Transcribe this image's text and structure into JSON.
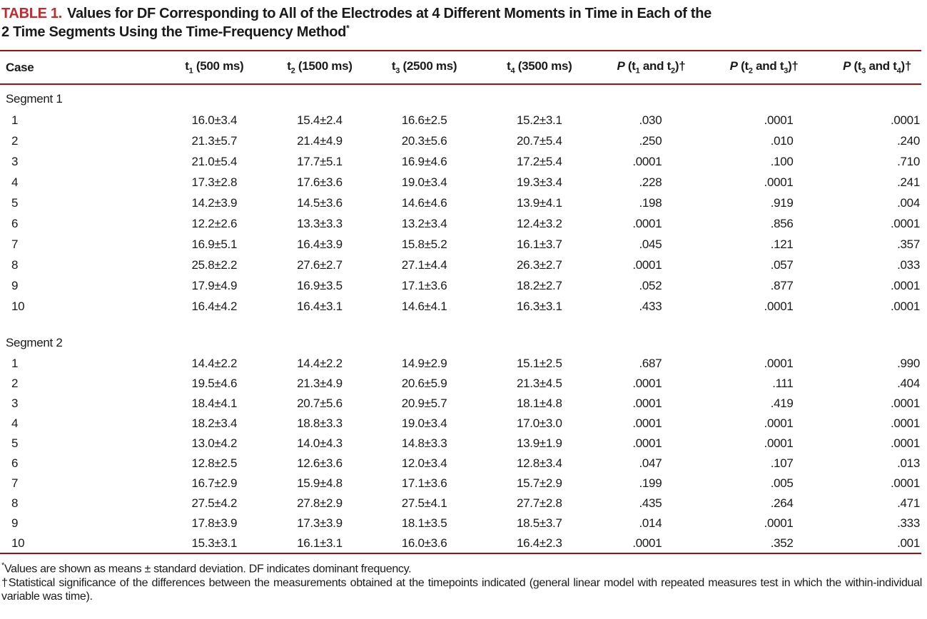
{
  "title": {
    "label": "TABLE 1.",
    "line1": "Values for DF Corresponding to All of the Electrodes at 4 Different Moments in Time in Each of the",
    "line2": "2 Time Segments Using the Time-Frequency Method",
    "marker": "*"
  },
  "colors": {
    "title_red": "#c32a2e",
    "rule_red": "#9e0f14",
    "text": "#1a1a1a"
  },
  "table": {
    "headers": [
      {
        "name": "case",
        "segments": [
          {
            "t": "Case"
          }
        ]
      },
      {
        "name": "t1",
        "segments": [
          {
            "t": "t"
          },
          {
            "t": "1",
            "s": "sub"
          },
          {
            "t": " (500 ms)"
          }
        ]
      },
      {
        "name": "t2",
        "segments": [
          {
            "t": "t"
          },
          {
            "t": "2",
            "s": "sub"
          },
          {
            "t": " (1500 ms)"
          }
        ]
      },
      {
        "name": "t3",
        "segments": [
          {
            "t": "t"
          },
          {
            "t": "3",
            "s": "sub"
          },
          {
            "t": " (2500 ms)"
          }
        ]
      },
      {
        "name": "t4",
        "segments": [
          {
            "t": "t"
          },
          {
            "t": "4",
            "s": "sub"
          },
          {
            "t": " (3500 ms)"
          }
        ]
      },
      {
        "name": "p12",
        "segments": [
          {
            "t": "P",
            "s": "i"
          },
          {
            "t": " (t"
          },
          {
            "t": "1",
            "s": "sub"
          },
          {
            "t": " and t"
          },
          {
            "t": "2",
            "s": "sub"
          },
          {
            "t": ")†"
          }
        ]
      },
      {
        "name": "p23",
        "segments": [
          {
            "t": "P",
            "s": "i"
          },
          {
            "t": " (t"
          },
          {
            "t": "2",
            "s": "sub"
          },
          {
            "t": " and t"
          },
          {
            "t": "3",
            "s": "sub"
          },
          {
            "t": ")†"
          }
        ]
      },
      {
        "name": "p34",
        "segments": [
          {
            "t": "P",
            "s": "i"
          },
          {
            "t": " (t"
          },
          {
            "t": "3",
            "s": "sub"
          },
          {
            "t": " and t"
          },
          {
            "t": "4",
            "s": "sub"
          },
          {
            "t": ")†"
          }
        ]
      }
    ],
    "sections": [
      {
        "label": "Segment 1",
        "rows": [
          [
            "1",
            "16.0±3.4",
            "15.4±2.4",
            "16.6±2.5",
            "15.2±3.1",
            ".030",
            ".0001",
            ".0001"
          ],
          [
            "2",
            "21.3±5.7",
            "21.4±4.9",
            "20.3±5.6",
            "20.7±5.4",
            ".250",
            ".010",
            ".240"
          ],
          [
            "3",
            "21.0±5.4",
            "17.7±5.1",
            "16.9±4.6",
            "17.2±5.4",
            ".0001",
            ".100",
            ".710"
          ],
          [
            "4",
            "17.3±2.8",
            "17.6±3.6",
            "19.0±3.4",
            "19.3±3.4",
            ".228",
            ".0001",
            ".241"
          ],
          [
            "5",
            "14.2±3.9",
            "14.5±3.6",
            "14.6±4.6",
            "13.9±4.1",
            ".198",
            ".919",
            ".004"
          ],
          [
            "6",
            "12.2±2.6",
            "13.3±3.3",
            "13.2±3.4",
            "12.4±3.2",
            ".0001",
            ".856",
            ".0001"
          ],
          [
            "7",
            "16.9±5.1",
            "16.4±3.9",
            "15.8±5.2",
            "16.1±3.7",
            ".045",
            ".121",
            ".357"
          ],
          [
            "8",
            "25.8±2.2",
            "27.6±2.7",
            "27.1±4.4",
            "26.3±2.7",
            ".0001",
            ".057",
            ".033"
          ],
          [
            "9",
            "17.9±4.9",
            "16.9±3.5",
            "17.1±3.6",
            "18.2±2.7",
            ".052",
            ".877",
            ".0001"
          ],
          [
            "10",
            "16.4±4.2",
            "16.4±3.1",
            "14.6±4.1",
            "16.3±3.1",
            ".433",
            ".0001",
            ".0001"
          ]
        ]
      },
      {
        "label": "Segment 2",
        "rows": [
          [
            "1",
            "14.4±2.2",
            "14.4±2.2",
            "14.9±2.9",
            "15.1±2.5",
            ".687",
            ".0001",
            ".990"
          ],
          [
            "2",
            "19.5±4.6",
            "21.3±4.9",
            "20.6±5.9",
            "21.3±4.5",
            ".0001",
            ".111",
            ".404"
          ],
          [
            "3",
            "18.4±4.1",
            "20.7±5.6",
            "20.9±5.7",
            "18.1±4.8",
            ".0001",
            ".419",
            ".0001"
          ],
          [
            "4",
            "18.2±3.4",
            "18.8±3.3",
            "19.0±3.4",
            "17.0±3.0",
            ".0001",
            ".0001",
            ".0001"
          ],
          [
            "5",
            "13.0±4.2",
            "14.0±4.3",
            "14.8±3.3",
            "13.9±1.9",
            ".0001",
            ".0001",
            ".0001"
          ],
          [
            "6",
            "12.8±2.5",
            "12.6±3.6",
            "12.0±3.4",
            "12.8±3.4",
            ".047",
            ".107",
            ".013"
          ],
          [
            "7",
            "16.7±2.9",
            "15.9±4.8",
            "17.1±3.6",
            "15.7±2.9",
            ".199",
            ".005",
            ".0001"
          ],
          [
            "8",
            "27.5±4.2",
            "27.8±2.9",
            "27.5±4.1",
            "27.7±2.8",
            ".435",
            ".264",
            ".471"
          ],
          [
            "9",
            "17.8±3.9",
            "17.3±3.9",
            "18.1±3.5",
            "18.5±3.7",
            ".014",
            ".0001",
            ".333"
          ],
          [
            "10",
            "15.3±3.1",
            "16.1±3.1",
            "16.0±3.6",
            "16.4±2.3",
            ".0001",
            ".352",
            ".001"
          ]
        ]
      }
    ]
  },
  "footnotes": [
    {
      "marker": "*",
      "text": "Values are shown as means ± standard deviation. DF indicates dominant frequency."
    },
    {
      "marker": "†",
      "text": "Statistical significance of the differences between the measurements obtained at the timepoints indicated (general linear model with repeated measures test in which the within-individual variable was time)."
    }
  ]
}
